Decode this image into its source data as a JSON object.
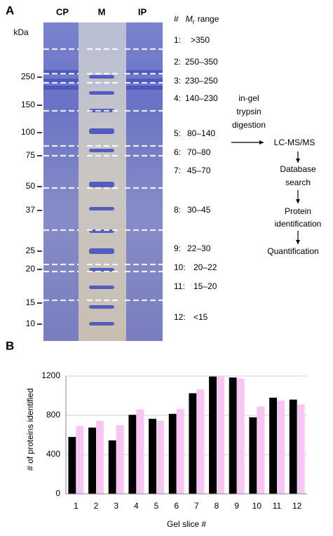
{
  "panel_a": {
    "label": "A",
    "lanes": [
      "CP",
      "M",
      "IP"
    ],
    "unit": "kDa",
    "markers": [
      "250",
      "150",
      "100",
      "75",
      "50",
      "37",
      "25",
      "20",
      "15",
      "10"
    ],
    "range_header": {
      "hash": "#",
      "m": "M",
      "sub": "r",
      "range": "range"
    },
    "slices": [
      {
        "num": "1:",
        "range": ">350"
      },
      {
        "num": "2:",
        "range": "250–350"
      },
      {
        "num": "3:",
        "range": "230–250"
      },
      {
        "num": "4:",
        "range": "140–230"
      },
      {
        "num": "5:",
        "range": "80–140"
      },
      {
        "num": "6:",
        "range": "70–80"
      },
      {
        "num": "7:",
        "range": "45–70"
      },
      {
        "num": "8:",
        "range": "30–45"
      },
      {
        "num": "9:",
        "range": "22–30"
      },
      {
        "num": "10:",
        "range": "20–22"
      },
      {
        "num": "11:",
        "range": "15–20"
      },
      {
        "num": "12:",
        "range": "<15"
      }
    ],
    "workflow": {
      "digestion": [
        "in-gel",
        "trypsin",
        "digestion"
      ],
      "ms": "LC-MS/MS",
      "search": [
        "Database",
        "search"
      ],
      "identification": [
        "Protein",
        "identification"
      ],
      "quantification": "Quantification"
    }
  },
  "chart_data": {
    "type": "bar",
    "label": "B",
    "x_label": "Gel slice #",
    "y_label": "# of proteins identified",
    "categories": [
      "1",
      "2",
      "3",
      "4",
      "5",
      "6",
      "7",
      "8",
      "9",
      "10",
      "11",
      "12"
    ],
    "series": [
      {
        "color": "#000000",
        "values": [
          580,
          675,
          545,
          805,
          765,
          815,
          1025,
          1195,
          1185,
          780,
          980,
          960
        ]
      },
      {
        "color": "#f7c6f5",
        "values": [
          690,
          745,
          700,
          860,
          745,
          865,
          1065,
          1200,
          1175,
          890,
          950,
          910
        ]
      }
    ],
    "ylim": [
      0,
      1200
    ],
    "yticks": [
      0,
      400,
      800,
      1200
    ],
    "grid": true
  }
}
